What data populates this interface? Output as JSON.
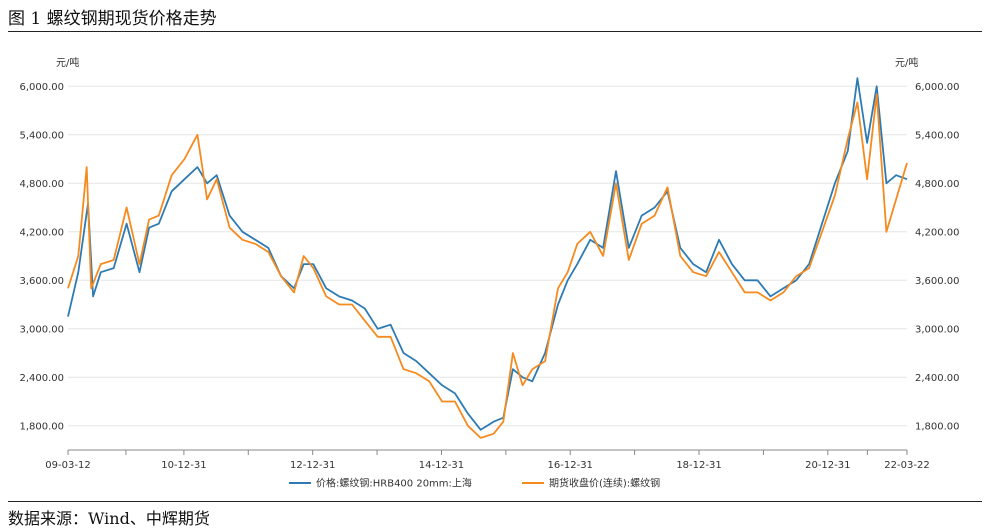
{
  "header": {
    "title": "图 1 螺纹钢期现货价格走势"
  },
  "footer": {
    "source": "数据来源：Wind、中辉期货"
  },
  "chart_data": {
    "type": "line",
    "title": "图 1 螺纹钢期现货价格走势",
    "unit_left": "元/吨",
    "unit_right": "元/吨",
    "ylim": [
      1500,
      6300
    ],
    "y_ticks": [
      1800,
      2400,
      3000,
      3600,
      4200,
      4800,
      5400,
      6000
    ],
    "y_tick_labels": [
      "1,800.00",
      "2,400.00",
      "3,000.00",
      "3,600.00",
      "4,200.00",
      "4,800.00",
      "5,400.00",
      "6,000.00"
    ],
    "x_tick_labels": [
      "09-03-12",
      "10-12-31",
      "12-12-31",
      "14-12-31",
      "16-12-31",
      "18-12-31",
      "20-12-31",
      "22-03-22"
    ],
    "x_tick_positions": [
      2009.19,
      2010.99,
      2012.99,
      2014.99,
      2016.99,
      2018.99,
      2020.99,
      2022.22
    ],
    "grid": true,
    "legend_position": "bottom",
    "colors": {
      "spot": "#2e7bb4",
      "futures": "#f58a1f"
    },
    "series": [
      {
        "name": "价格:螺纹钢:HRB400 20mm:上海",
        "x": [
          2009.19,
          2009.35,
          2009.5,
          2009.58,
          2009.7,
          2009.9,
          2010.1,
          2010.3,
          2010.45,
          2010.6,
          2010.8,
          2011.0,
          2011.2,
          2011.35,
          2011.5,
          2011.7,
          2011.9,
          2012.1,
          2012.3,
          2012.5,
          2012.7,
          2012.85,
          2013.0,
          2013.2,
          2013.4,
          2013.6,
          2013.8,
          2014.0,
          2014.2,
          2014.4,
          2014.6,
          2014.8,
          2015.0,
          2015.2,
          2015.4,
          2015.6,
          2015.8,
          2015.95,
          2016.1,
          2016.25,
          2016.4,
          2016.6,
          2016.8,
          2016.95,
          2017.1,
          2017.3,
          2017.5,
          2017.7,
          2017.9,
          2018.1,
          2018.3,
          2018.5,
          2018.7,
          2018.9,
          2019.1,
          2019.3,
          2019.5,
          2019.7,
          2019.9,
          2020.1,
          2020.3,
          2020.5,
          2020.7,
          2020.9,
          2021.1,
          2021.3,
          2021.45,
          2021.6,
          2021.75,
          2021.9,
          2022.05,
          2022.22
        ],
        "values": [
          3150,
          3700,
          4550,
          3400,
          3700,
          3750,
          4300,
          3700,
          4250,
          4300,
          4700,
          4850,
          5000,
          4800,
          4900,
          4400,
          4200,
          4100,
          4000,
          3650,
          3500,
          3800,
          3800,
          3500,
          3400,
          3350,
          3250,
          3000,
          3050,
          2700,
          2600,
          2450,
          2300,
          2200,
          1950,
          1750,
          1850,
          1900,
          2500,
          2400,
          2350,
          2700,
          3300,
          3600,
          3800,
          4100,
          4000,
          4950,
          4000,
          4400,
          4500,
          4700,
          4000,
          3800,
          3700,
          4100,
          3800,
          3600,
          3600,
          3400,
          3500,
          3600,
          3800,
          4300,
          4800,
          5200,
          6100,
          5300,
          6000,
          4800,
          4900,
          4850
        ]
      },
      {
        "name": "期货收盘价(连续):螺纹钢",
        "x": [
          2009.19,
          2009.35,
          2009.48,
          2009.55,
          2009.7,
          2009.9,
          2010.1,
          2010.3,
          2010.45,
          2010.6,
          2010.8,
          2011.0,
          2011.2,
          2011.35,
          2011.5,
          2011.7,
          2011.9,
          2012.1,
          2012.3,
          2012.5,
          2012.7,
          2012.85,
          2013.0,
          2013.2,
          2013.4,
          2013.6,
          2013.8,
          2014.0,
          2014.2,
          2014.4,
          2014.6,
          2014.8,
          2015.0,
          2015.2,
          2015.4,
          2015.6,
          2015.8,
          2015.95,
          2016.1,
          2016.25,
          2016.4,
          2016.6,
          2016.8,
          2016.95,
          2017.1,
          2017.3,
          2017.5,
          2017.7,
          2017.9,
          2018.1,
          2018.3,
          2018.5,
          2018.7,
          2018.9,
          2019.1,
          2019.3,
          2019.5,
          2019.7,
          2019.9,
          2020.1,
          2020.3,
          2020.5,
          2020.7,
          2020.9,
          2021.1,
          2021.3,
          2021.45,
          2021.6,
          2021.75,
          2021.9,
          2022.05,
          2022.22
        ],
        "values": [
          3500,
          3900,
          5000,
          3500,
          3800,
          3850,
          4500,
          3800,
          4350,
          4400,
          4900,
          5100,
          5400,
          4600,
          4850,
          4250,
          4100,
          4050,
          3950,
          3650,
          3450,
          3900,
          3750,
          3400,
          3300,
          3300,
          3100,
          2900,
          2900,
          2500,
          2450,
          2350,
          2100,
          2100,
          1800,
          1650,
          1700,
          1850,
          2700,
          2300,
          2500,
          2600,
          3500,
          3700,
          4050,
          4200,
          3900,
          4800,
          3850,
          4300,
          4400,
          4750,
          3900,
          3700,
          3650,
          3950,
          3700,
          3450,
          3450,
          3350,
          3450,
          3650,
          3750,
          4200,
          4650,
          5350,
          5800,
          4850,
          5900,
          4200,
          4600,
          5050
        ]
      }
    ]
  }
}
